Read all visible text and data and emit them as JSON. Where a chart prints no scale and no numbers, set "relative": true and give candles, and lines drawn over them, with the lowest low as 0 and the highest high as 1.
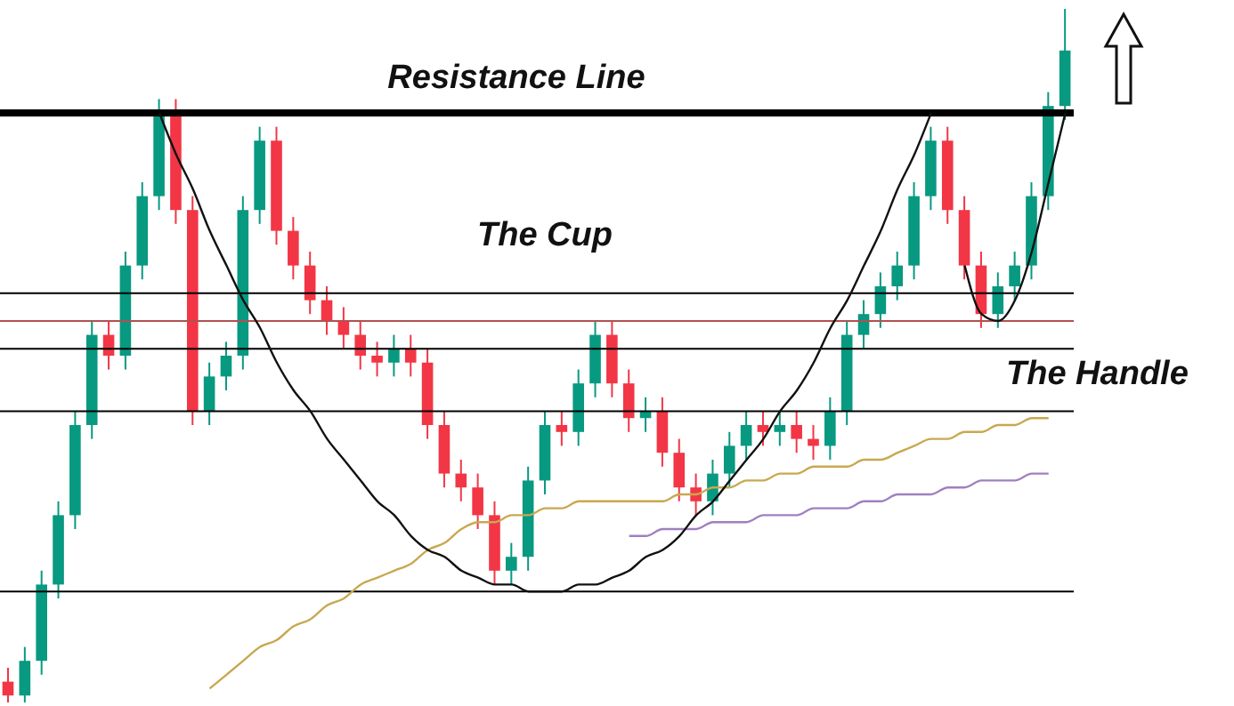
{
  "chart_data": {
    "type": "candlestick",
    "relative": true,
    "categories": [
      null,
      null,
      null,
      null,
      null,
      null,
      null,
      null,
      null,
      null,
      null,
      null,
      null,
      null,
      null,
      null,
      null,
      null,
      null,
      null,
      null,
      null,
      null,
      null,
      null,
      null,
      null,
      null,
      null,
      null,
      null,
      null,
      null,
      null,
      null,
      null,
      null,
      null,
      null,
      null,
      null,
      null,
      null,
      null,
      null,
      null,
      null,
      null,
      null,
      null,
      null,
      null,
      null,
      null,
      null,
      null,
      null,
      null,
      null,
      null,
      null,
      null,
      null,
      null
    ],
    "ohlc": [
      [
        0.03,
        0.05,
        0.0,
        0.01
      ],
      [
        0.01,
        0.08,
        0.0,
        0.06
      ],
      [
        0.06,
        0.19,
        0.04,
        0.17
      ],
      [
        0.17,
        0.29,
        0.15,
        0.27
      ],
      [
        0.27,
        0.42,
        0.25,
        0.4
      ],
      [
        0.4,
        0.55,
        0.38,
        0.53
      ],
      [
        0.53,
        0.55,
        0.48,
        0.5
      ],
      [
        0.5,
        0.65,
        0.48,
        0.63
      ],
      [
        0.63,
        0.75,
        0.61,
        0.73
      ],
      [
        0.73,
        0.87,
        0.71,
        0.85
      ],
      [
        0.85,
        0.87,
        0.69,
        0.71
      ],
      [
        0.71,
        0.73,
        0.4,
        0.42
      ],
      [
        0.42,
        0.49,
        0.4,
        0.47
      ],
      [
        0.47,
        0.52,
        0.45,
        0.5
      ],
      [
        0.5,
        0.73,
        0.48,
        0.71
      ],
      [
        0.71,
        0.83,
        0.69,
        0.81
      ],
      [
        0.81,
        0.83,
        0.66,
        0.68
      ],
      [
        0.68,
        0.7,
        0.61,
        0.63
      ],
      [
        0.63,
        0.65,
        0.56,
        0.58
      ],
      [
        0.58,
        0.6,
        0.53,
        0.55
      ],
      [
        0.55,
        0.57,
        0.51,
        0.53
      ],
      [
        0.53,
        0.55,
        0.48,
        0.5
      ],
      [
        0.5,
        0.52,
        0.47,
        0.49
      ],
      [
        0.49,
        0.53,
        0.47,
        0.51
      ],
      [
        0.51,
        0.53,
        0.47,
        0.49
      ],
      [
        0.49,
        0.51,
        0.38,
        0.4
      ],
      [
        0.4,
        0.42,
        0.31,
        0.33
      ],
      [
        0.33,
        0.35,
        0.29,
        0.31
      ],
      [
        0.31,
        0.33,
        0.25,
        0.27
      ],
      [
        0.27,
        0.29,
        0.17,
        0.19
      ],
      [
        0.19,
        0.23,
        0.17,
        0.21
      ],
      [
        0.21,
        0.34,
        0.19,
        0.32
      ],
      [
        0.32,
        0.42,
        0.3,
        0.4
      ],
      [
        0.4,
        0.42,
        0.37,
        0.39
      ],
      [
        0.39,
        0.48,
        0.37,
        0.46
      ],
      [
        0.46,
        0.55,
        0.44,
        0.53
      ],
      [
        0.53,
        0.55,
        0.44,
        0.46
      ],
      [
        0.46,
        0.48,
        0.39,
        0.41
      ],
      [
        0.41,
        0.44,
        0.39,
        0.42
      ],
      [
        0.42,
        0.44,
        0.34,
        0.36
      ],
      [
        0.36,
        0.38,
        0.29,
        0.31
      ],
      [
        0.31,
        0.33,
        0.27,
        0.29
      ],
      [
        0.29,
        0.35,
        0.27,
        0.33
      ],
      [
        0.33,
        0.39,
        0.31,
        0.37
      ],
      [
        0.37,
        0.42,
        0.35,
        0.4
      ],
      [
        0.4,
        0.42,
        0.37,
        0.39
      ],
      [
        0.39,
        0.42,
        0.37,
        0.4
      ],
      [
        0.4,
        0.42,
        0.36,
        0.38
      ],
      [
        0.38,
        0.4,
        0.35,
        0.37
      ],
      [
        0.37,
        0.44,
        0.35,
        0.42
      ],
      [
        0.42,
        0.55,
        0.4,
        0.53
      ],
      [
        0.53,
        0.58,
        0.51,
        0.56
      ],
      [
        0.56,
        0.62,
        0.54,
        0.6
      ],
      [
        0.6,
        0.65,
        0.58,
        0.63
      ],
      [
        0.63,
        0.75,
        0.61,
        0.73
      ],
      [
        0.73,
        0.83,
        0.71,
        0.81
      ],
      [
        0.81,
        0.83,
        0.69,
        0.71
      ],
      [
        0.71,
        0.73,
        0.61,
        0.63
      ],
      [
        0.63,
        0.65,
        0.54,
        0.56
      ],
      [
        0.56,
        0.62,
        0.54,
        0.6
      ],
      [
        0.6,
        0.65,
        0.58,
        0.63
      ],
      [
        0.63,
        0.75,
        0.61,
        0.73
      ],
      [
        0.73,
        0.88,
        0.71,
        0.86
      ],
      [
        0.86,
        1.0,
        0.84,
        0.94
      ]
    ],
    "colors": [
      "#f23645",
      "#089981",
      "#089981",
      "#089981",
      "#089981",
      "#089981",
      "#f23645",
      "#089981",
      "#089981",
      "#089981",
      "#f23645",
      "#f23645",
      "#089981",
      "#089981",
      "#089981",
      "#089981",
      "#f23645",
      "#f23645",
      "#f23645",
      "#f23645",
      "#f23645",
      "#f23645",
      "#f23645",
      "#089981",
      "#f23645",
      "#f23645",
      "#f23645",
      "#f23645",
      "#f23645",
      "#f23645",
      "#089981",
      "#089981",
      "#089981",
      "#f23645",
      "#089981",
      "#089981",
      "#f23645",
      "#f23645",
      "#089981",
      "#f23645",
      "#f23645",
      "#f23645",
      "#089981",
      "#089981",
      "#089981",
      "#f23645",
      "#089981",
      "#f23645",
      "#f23645",
      "#089981",
      "#089981",
      "#089981",
      "#089981",
      "#089981",
      "#089981",
      "#089981",
      "#f23645",
      "#f23645",
      "#f23645",
      "#089981",
      "#089981",
      "#089981",
      "#089981",
      "#089981"
    ],
    "series": [
      {
        "type": "line",
        "color": "#c8a850",
        "values": [
          null,
          null,
          null,
          null,
          null,
          null,
          null,
          null,
          null,
          null,
          null,
          null,
          0.02,
          0.04,
          0.06,
          0.08,
          0.09,
          0.11,
          0.12,
          0.14,
          0.15,
          0.17,
          0.18,
          0.19,
          0.2,
          0.22,
          0.23,
          0.25,
          0.26,
          0.26,
          0.27,
          0.27,
          0.28,
          0.28,
          0.29,
          0.29,
          0.29,
          0.29,
          0.29,
          0.29,
          0.3,
          0.3,
          0.31,
          0.31,
          0.32,
          0.32,
          0.33,
          0.33,
          0.34,
          0.34,
          0.34,
          0.35,
          0.35,
          0.36,
          0.37,
          0.38,
          0.38,
          0.39,
          0.39,
          0.4,
          0.4,
          0.41,
          0.41,
          null
        ]
      },
      {
        "type": "line",
        "color": "#a080c0",
        "values": [
          null,
          null,
          null,
          null,
          null,
          null,
          null,
          null,
          null,
          null,
          null,
          null,
          null,
          null,
          null,
          null,
          null,
          null,
          null,
          null,
          null,
          null,
          null,
          null,
          null,
          null,
          null,
          null,
          null,
          null,
          null,
          null,
          null,
          null,
          null,
          null,
          null,
          0.24,
          0.24,
          0.25,
          0.25,
          0.25,
          0.26,
          0.26,
          0.26,
          0.27,
          0.27,
          0.27,
          0.28,
          0.28,
          0.28,
          0.29,
          0.29,
          0.3,
          0.3,
          0.3,
          0.31,
          0.31,
          0.32,
          0.32,
          0.32,
          0.33,
          0.33,
          null
        ]
      },
      {
        "type": "line",
        "color": "#111111",
        "values": [
          null,
          null,
          null,
          null,
          null,
          null,
          null,
          null,
          null,
          0.85,
          0.79,
          0.74,
          0.68,
          0.63,
          0.58,
          0.54,
          0.49,
          0.45,
          0.42,
          0.38,
          0.35,
          0.32,
          0.29,
          0.27,
          0.24,
          0.22,
          0.21,
          0.19,
          0.18,
          0.17,
          0.17,
          0.16,
          0.16,
          0.16,
          0.17,
          0.17,
          0.18,
          0.19,
          0.21,
          0.22,
          0.24,
          0.27,
          0.29,
          0.32,
          0.35,
          0.38,
          0.42,
          0.45,
          0.49,
          0.54,
          0.58,
          0.63,
          0.68,
          0.74,
          0.79,
          0.85,
          null,
          null,
          null,
          null,
          null,
          null,
          null,
          null
        ]
      },
      {
        "type": "line",
        "color": "#111111",
        "values": [
          null,
          null,
          null,
          null,
          null,
          null,
          null,
          null,
          null,
          null,
          null,
          null,
          null,
          null,
          null,
          null,
          null,
          null,
          null,
          null,
          null,
          null,
          null,
          null,
          null,
          null,
          null,
          null,
          null,
          null,
          null,
          null,
          null,
          null,
          null,
          null,
          null,
          null,
          null,
          null,
          null,
          null,
          null,
          null,
          null,
          null,
          null,
          null,
          null,
          null,
          null,
          null,
          null,
          null,
          null,
          null,
          null,
          0.63,
          0.56,
          0.55,
          0.58,
          0.65,
          0.75,
          0.85
        ]
      }
    ],
    "ref_lines": [
      {
        "axis": "y",
        "value": 0.85,
        "label": "Resistance Line",
        "color": "#000000"
      },
      {
        "axis": "y",
        "value": 0.59,
        "color": "#000000"
      },
      {
        "axis": "y",
        "value": 0.55,
        "color": "#b05050"
      },
      {
        "axis": "y",
        "value": 0.51,
        "color": "#000000"
      },
      {
        "axis": "y",
        "value": 0.42,
        "color": "#000000"
      },
      {
        "axis": "y",
        "value": 0.16,
        "color": "#000000"
      }
    ],
    "annotations": [
      "The Cup",
      "The Handle"
    ]
  }
}
